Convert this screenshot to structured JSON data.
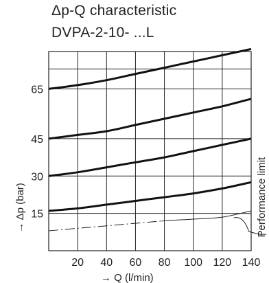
{
  "chart_data": {
    "type": "line",
    "title": [
      "Δp-Q characteristic",
      "DVPA-2-10- ...L"
    ],
    "xlabel": "→ Q (l/min)",
    "ylabel": "→ Δp (bar)",
    "xlim": [
      0,
      140
    ],
    "ylim": [
      0,
      80
    ],
    "x_ticks": [
      20,
      40,
      60,
      80,
      100,
      120,
      140
    ],
    "y_ticks": [
      15,
      30,
      45,
      65
    ],
    "grid": true,
    "annotation": "Performance limit",
    "series": [
      {
        "role": "curve",
        "x": [
          0,
          20,
          40,
          60,
          80,
          100,
          120,
          140
        ],
        "y": [
          16,
          17,
          18.5,
          20,
          21.5,
          23,
          25,
          27.5
        ]
      },
      {
        "role": "curve",
        "x": [
          0,
          20,
          40,
          60,
          80,
          100,
          120,
          140
        ],
        "y": [
          30,
          31.5,
          33.5,
          35.5,
          37.5,
          40,
          42.5,
          45
        ]
      },
      {
        "role": "curve",
        "x": [
          0,
          20,
          40,
          60,
          80,
          100,
          120,
          140
        ],
        "y": [
          45,
          46.5,
          48,
          50.5,
          53,
          55.5,
          58,
          61
        ]
      },
      {
        "role": "curve",
        "x": [
          0,
          20,
          40,
          60,
          80,
          100,
          120,
          140
        ],
        "y": [
          65,
          66.5,
          68.5,
          71,
          73.5,
          76,
          78.5,
          81
        ]
      },
      {
        "role": "performance-limit",
        "x": [
          0,
          20,
          40,
          60,
          80,
          100,
          120,
          140
        ],
        "y": [
          8,
          9,
          10,
          11,
          12,
          12.7,
          13.5,
          16
        ]
      }
    ]
  }
}
